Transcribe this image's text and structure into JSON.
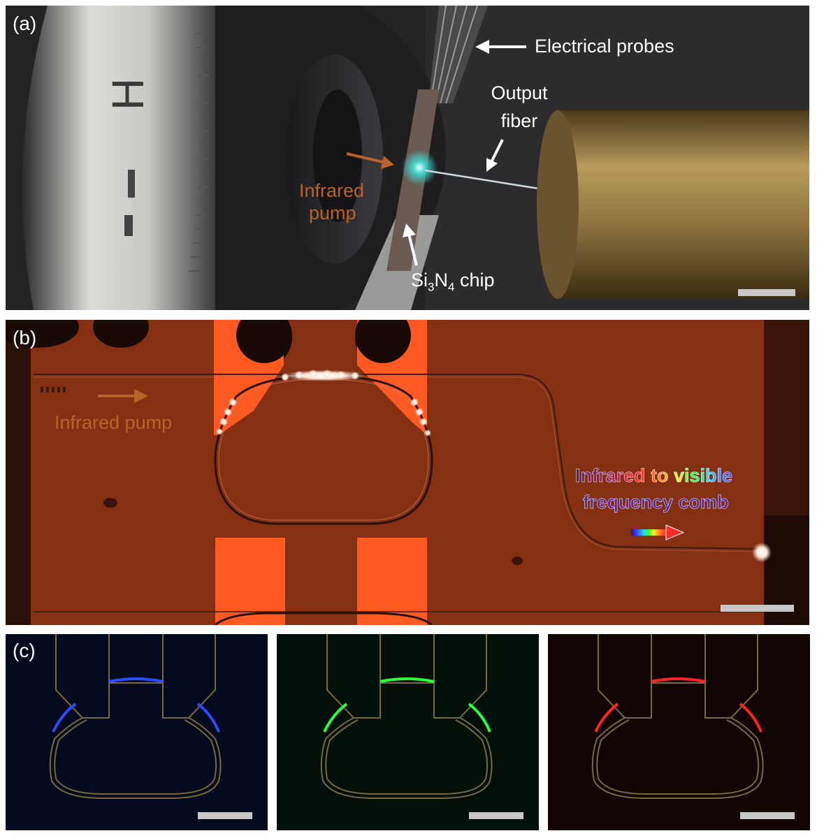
{
  "panel_a": {
    "label": "(a)",
    "dial_mark": "H",
    "electrical_probes": "Electrical probes",
    "output_fiber_line1": "Output",
    "output_fiber_line2": "fiber",
    "infrared_pump_line1": "Infrared",
    "infrared_pump_line2": "pump",
    "chip_si": "Si",
    "chip_3": "3",
    "chip_n": "N",
    "chip_4": "4",
    "chip_rest": " chip"
  },
  "panel_b": {
    "label": "(b)",
    "infrared_pump": "Infrared pump",
    "comb_line1": "Infrared to visible",
    "comb_line2": "frequency comb"
  },
  "panel_c": {
    "label": "(c)"
  },
  "colors": {
    "orange_annotation": "#b8632a",
    "chip_background": "#8a3414",
    "electrode_orange": "#ff5a22",
    "blue_emission": "#2a4cff",
    "green_emission": "#2aff3a",
    "red_emission": "#ff2222",
    "outline_gold": "#7a6a3a"
  },
  "icons": [
    "arrow-icon",
    "rainbow-arrow-icon",
    "scale-bar"
  ]
}
